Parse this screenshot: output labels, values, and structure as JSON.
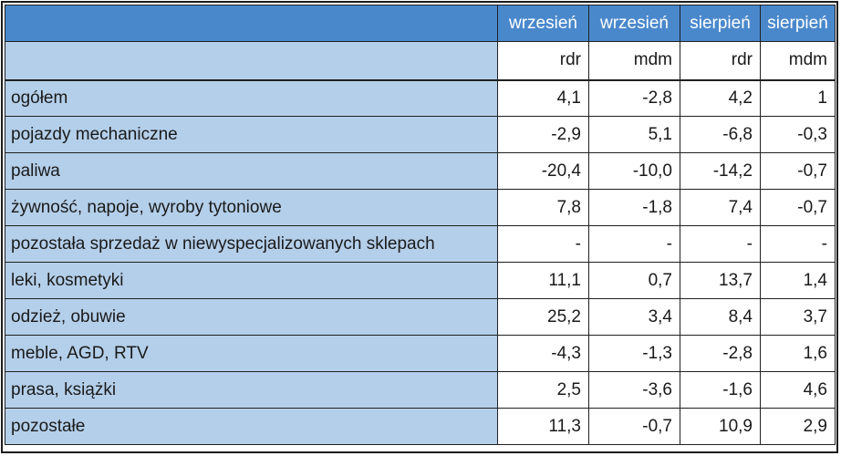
{
  "table": {
    "header_top": [
      "wrzesień",
      "wrzesień",
      "sierpień",
      "sierpień"
    ],
    "header_sub": [
      "rdr",
      "mdm",
      "rdr",
      "mdm"
    ],
    "rows": [
      {
        "label": "ogółem",
        "values": [
          "4,1",
          "-2,8",
          "4,2",
          "1"
        ]
      },
      {
        "label": "pojazdy mechaniczne",
        "values": [
          "-2,9",
          "5,1",
          "-6,8",
          "-0,3"
        ]
      },
      {
        "label": "paliwa",
        "values": [
          "-20,4",
          "-10,0",
          "-14,2",
          "-0,7"
        ]
      },
      {
        "label": "żywność, napoje, wyroby tytoniowe",
        "values": [
          "7,8",
          "-1,8",
          "7,4",
          "-0,7"
        ]
      },
      {
        "label": "pozostała sprzedaż w niewyspecjalizowanych sklepach",
        "values": [
          "-",
          "-",
          "-",
          "-"
        ]
      },
      {
        "label": "leki, kosmetyki",
        "values": [
          "11,1",
          "0,7",
          "13,7",
          "1,4"
        ]
      },
      {
        "label": "odzież, obuwie",
        "values": [
          "25,2",
          "3,4",
          "8,4",
          "3,7"
        ]
      },
      {
        "label": "meble, AGD, RTV",
        "values": [
          "-4,3",
          "-1,3",
          "-2,8",
          "1,6"
        ]
      },
      {
        "label": "prasa, książki",
        "values": [
          "2,5",
          "-3,6",
          "-1,6",
          "4,6"
        ]
      },
      {
        "label": "pozostałe",
        "values": [
          "11,3",
          "-0,7",
          "10,9",
          "2,9"
        ]
      }
    ]
  }
}
